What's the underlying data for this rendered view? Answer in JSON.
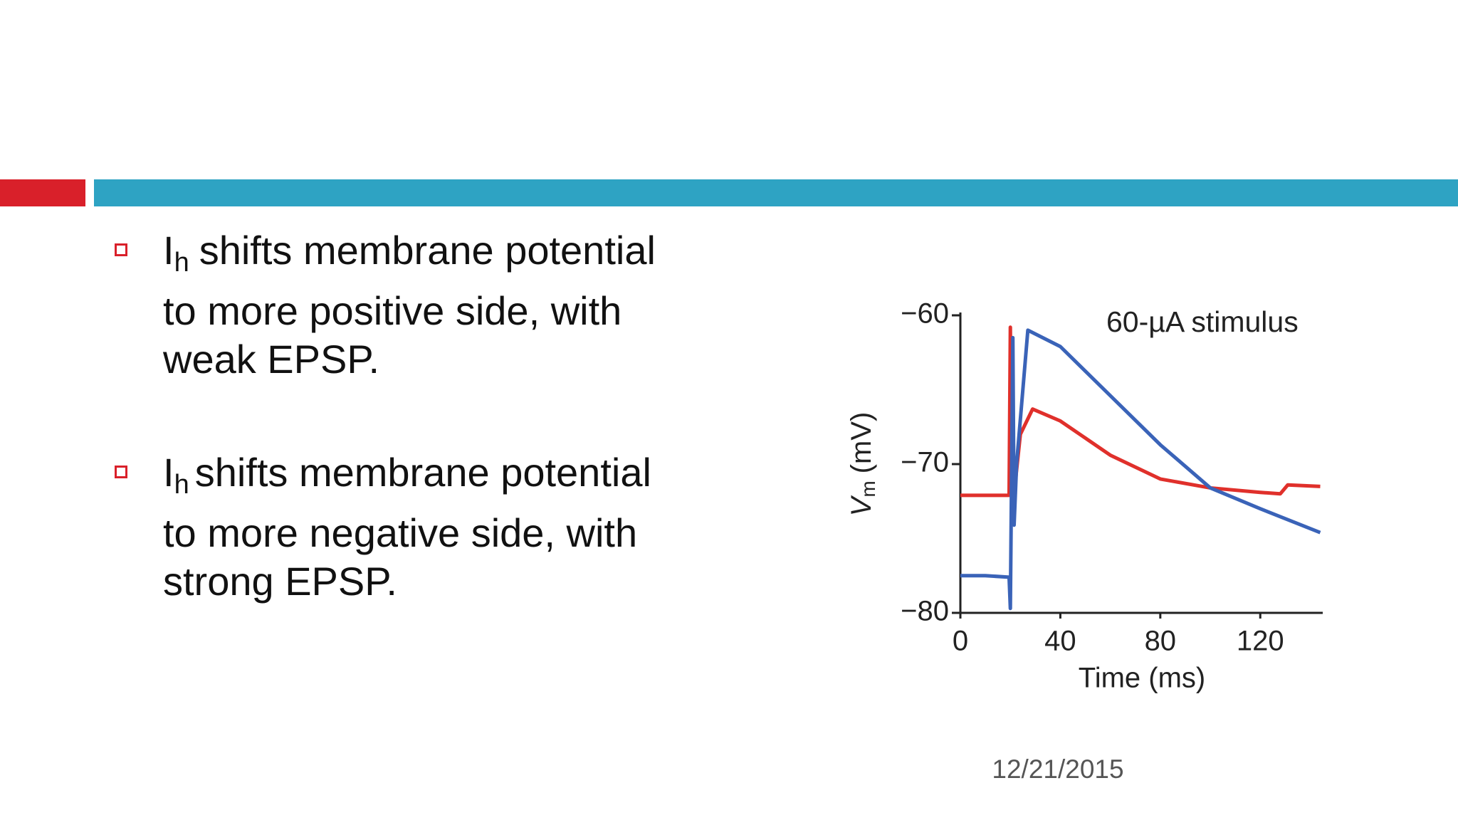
{
  "bullets": [
    {
      "symbol": "I",
      "subscript": "h",
      "lines": [
        "shifts membrane potential",
        "to more positive side, with",
        "weak EPSP."
      ]
    },
    {
      "symbol": "I",
      "subscript": "h",
      "lines": [
        "shifts membrane potential",
        "to more negative side, with",
        "strong EPSP."
      ]
    }
  ],
  "date": "12/21/2015",
  "chart_data": {
    "type": "line",
    "annotation": "60-µA stimulus",
    "x_label": "Time (ms)",
    "y_label": {
      "symbol": "V",
      "subscript": "m",
      "unit": "(mV)"
    },
    "xlim": [
      0,
      145
    ],
    "ylim": [
      -80,
      -60
    ],
    "xticks": [
      0,
      40,
      80,
      120
    ],
    "yticks": [
      {
        "value": -60,
        "label": "−60"
      },
      {
        "value": -70,
        "label": "−70"
      },
      {
        "value": -80,
        "label": "−80"
      }
    ],
    "series": [
      {
        "color": "#e0302b",
        "x": [
          0,
          10,
          19.5,
          20,
          20.5,
          21.5,
          24,
          28.9,
          40,
          60,
          80,
          100,
          120,
          128,
          131,
          144
        ],
        "y": [
          -72.1,
          -72.1,
          -72.1,
          -60.8,
          -71,
          -72,
          -68,
          -66.3,
          -67.1,
          -69.4,
          -71,
          -71.6,
          -71.9,
          -72,
          -71.4,
          -71.5
        ]
      },
      {
        "color": "#3a63b8",
        "x": [
          0,
          10,
          19.5,
          20,
          21,
          21.5,
          22.5,
          27,
          40,
          60,
          80,
          100,
          120,
          144
        ],
        "y": [
          -77.5,
          -77.5,
          -77.6,
          -79.7,
          -61.5,
          -74.1,
          -70,
          -61,
          -62.1,
          -65.4,
          -68.7,
          -71.6,
          -73,
          -74.6
        ]
      }
    ]
  }
}
